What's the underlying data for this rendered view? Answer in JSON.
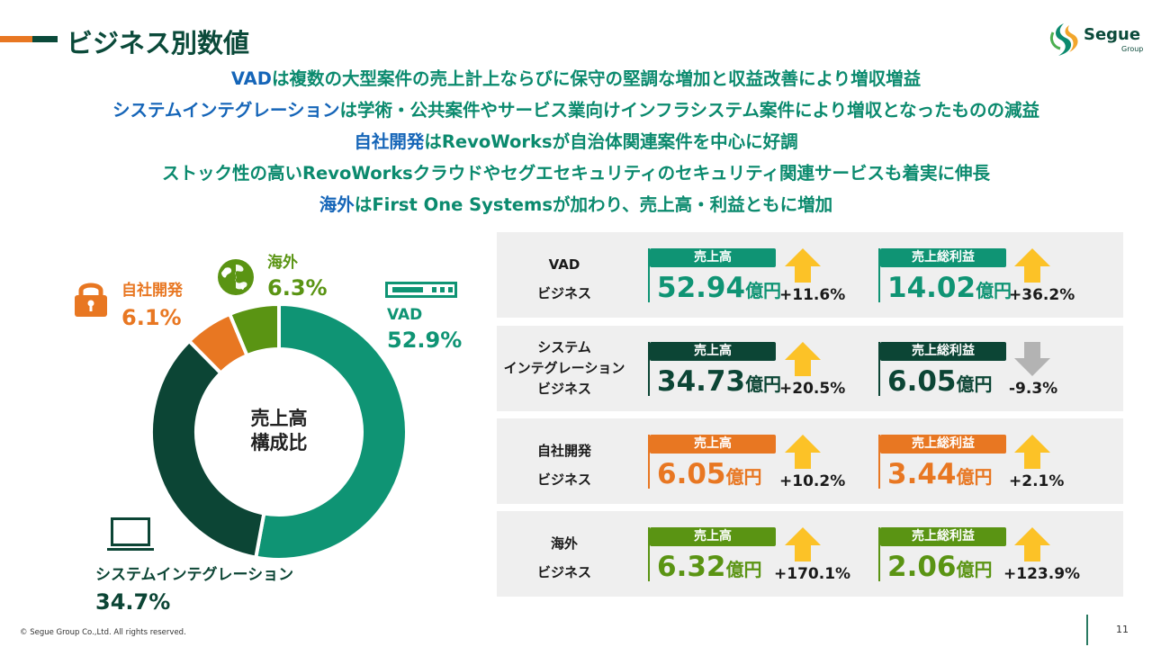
{
  "header": {
    "title": "ビジネス別数値"
  },
  "logo": {
    "name": "Segue",
    "sub": "Group"
  },
  "summary": [
    {
      "kw": "VAD",
      "text": "は複数の大型案件の売上計上ならびに保守の堅調な増加と収益改善により増収増益"
    },
    {
      "kw": "システムインテグレーション",
      "text": "は学術・公共案件やサービス業向けインフラシステム案件により増収となったものの減益"
    },
    {
      "kw": "自社開発",
      "text": "はRevoWorksが自治体関連案件を中心に好調"
    },
    {
      "kw": "",
      "text": "ストック性の高いRevoWorksクラウドやセグエセキュリティのセキュリティ関連サービスも着実に伸長"
    },
    {
      "kw": "海外",
      "text": "はFirst One Systemsが加わり、売上高・利益ともに増加"
    }
  ],
  "chart_data": {
    "type": "pie",
    "title": "売上高\n構成比",
    "center_label": [
      "売上高",
      "構成比"
    ],
    "slices": [
      {
        "name": "VAD",
        "value": 52.9,
        "label": "52.9%",
        "color": "#0f9474",
        "icon": "server-icon"
      },
      {
        "name": "システムインテグレーション",
        "value": 34.7,
        "label": "34.7%",
        "color": "#0c4535",
        "icon": "laptop-icon"
      },
      {
        "name": "自社開発",
        "value": 6.1,
        "label": "6.1%",
        "color": "#e87722",
        "icon": "lock-icon"
      },
      {
        "name": "海外",
        "value": 6.3,
        "label": "6.3%",
        "color": "#5a9413",
        "icon": "globe-icon"
      }
    ]
  },
  "segments": [
    {
      "name": [
        "VAD",
        "ビジネス"
      ],
      "color": "#0f9474",
      "sales": {
        "label": "売上高",
        "value": "52.94",
        "unit": "億円",
        "change": "+11.6%",
        "trend": "up"
      },
      "profit": {
        "label": "売上総利益",
        "value": "14.02",
        "unit": "億円",
        "change": "+36.2%",
        "trend": "up"
      }
    },
    {
      "name": [
        "システム",
        "インテグレーション",
        "ビジネス"
      ],
      "color": "#0c4535",
      "sales": {
        "label": "売上高",
        "value": "34.73",
        "unit": "億円",
        "change": "+20.5%",
        "trend": "up"
      },
      "profit": {
        "label": "売上総利益",
        "value": "6.05",
        "unit": "億円",
        "change": "-9.3%",
        "trend": "down"
      }
    },
    {
      "name": [
        "自社開発",
        "ビジネス"
      ],
      "color": "#e87722",
      "sales": {
        "label": "売上高",
        "value": "6.05",
        "unit": "億円",
        "change": "+10.2%",
        "trend": "up"
      },
      "profit": {
        "label": "売上総利益",
        "value": "3.44",
        "unit": "億円",
        "change": "+2.1%",
        "trend": "up"
      }
    },
    {
      "name": [
        "海外",
        "ビジネス"
      ],
      "color": "#5a9413",
      "sales": {
        "label": "売上高",
        "value": "6.32",
        "unit": "億円",
        "change": "+170.1%",
        "trend": "up"
      },
      "profit": {
        "label": "売上総利益",
        "value": "2.06",
        "unit": "億円",
        "change": "+123.9%",
        "trend": "up"
      }
    }
  ],
  "colors": {
    "arrow_up": "#fcc227",
    "arrow_down": "#b3b3b3",
    "title": "#0b4a3a",
    "summary": "#0b8a6e",
    "keyword": "#1565b8"
  },
  "footer": {
    "copyright": "© Segue Group Co.,Ltd. All rights reserved.",
    "page": "11"
  }
}
